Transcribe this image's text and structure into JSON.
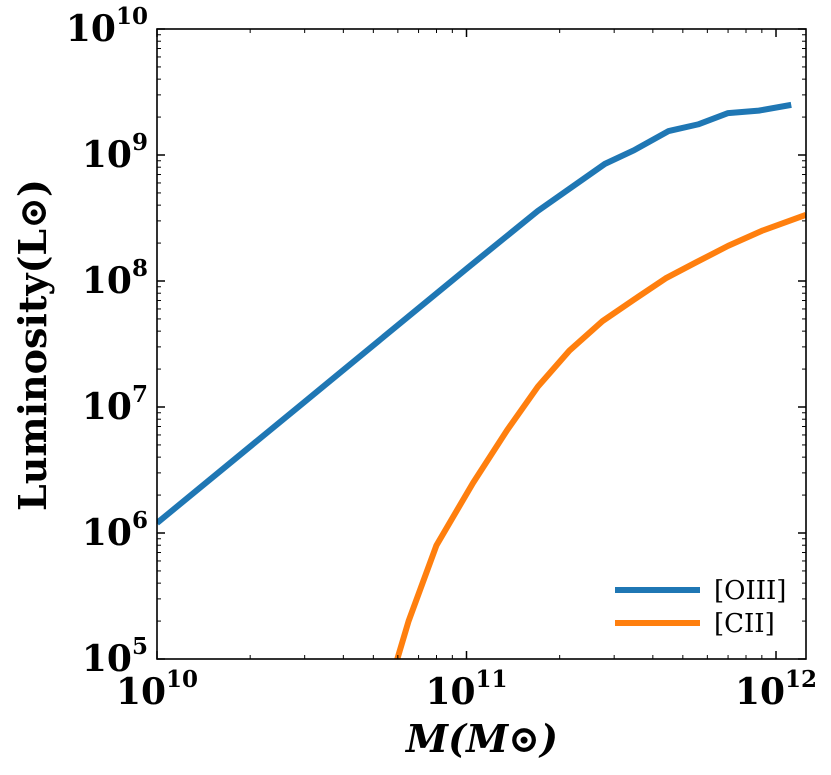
{
  "chart_data": {
    "type": "line",
    "title": "",
    "xlabel": "M(M⊙)",
    "ylabel": "Luminosity(L⊙)",
    "xscale": "log",
    "yscale": "log",
    "xlim": [
      10000000000.0,
      1250000000000.0
    ],
    "ylim": [
      100000.0,
      10000000000.0
    ],
    "x_ticks": [
      {
        "value": 10000000000.0,
        "base": "10",
        "exp": "10"
      },
      {
        "value": 100000000000.0,
        "base": "10",
        "exp": "11"
      },
      {
        "value": 1000000000000.0,
        "base": "10",
        "exp": "12"
      }
    ],
    "y_ticks": [
      {
        "value": 100000.0,
        "base": "10",
        "exp": "5"
      },
      {
        "value": 1000000.0,
        "base": "10",
        "exp": "6"
      },
      {
        "value": 10000000.0,
        "base": "10",
        "exp": "7"
      },
      {
        "value": 100000000.0,
        "base": "10",
        "exp": "8"
      },
      {
        "value": 1000000000.0,
        "base": "10",
        "exp": "9"
      },
      {
        "value": 10000000000.0,
        "base": "10",
        "exp": "10"
      }
    ],
    "legend_position": "bottom-right",
    "series": [
      {
        "name": "[OIII]",
        "color": "#1f77b4",
        "x": [
          10000000000.0,
          30000000000.0,
          100000000000.0,
          170000000000.0,
          280000000000.0,
          350000000000.0,
          450000000000.0,
          560000000000.0,
          700000000000.0,
          880000000000.0,
          1120000000000.0
        ],
        "y": [
          1200000.0,
          11000000.0,
          125000000.0,
          360000000.0,
          850000000.0,
          1100000000.0,
          1550000000.0,
          1750000000.0,
          2150000000.0,
          2250000000.0,
          2500000000.0
        ]
      },
      {
        "name": "[CII]",
        "color": "#ff7f0e",
        "x": [
          59000000000.0,
          65000000000.0,
          80000000000.0,
          105000000000.0,
          135000000000.0,
          170000000000.0,
          215000000000.0,
          275000000000.0,
          350000000000.0,
          440000000000.0,
          550000000000.0,
          700000000000.0,
          900000000000.0,
          1250000000000.0
        ],
        "y": [
          90000.0,
          200000.0,
          800000.0,
          2500000.0,
          6500000.0,
          14500000.0,
          28000000.0,
          48000000.0,
          72000000.0,
          105000000.0,
          140000000.0,
          190000000.0,
          250000000.0,
          335000000.0
        ]
      }
    ]
  }
}
